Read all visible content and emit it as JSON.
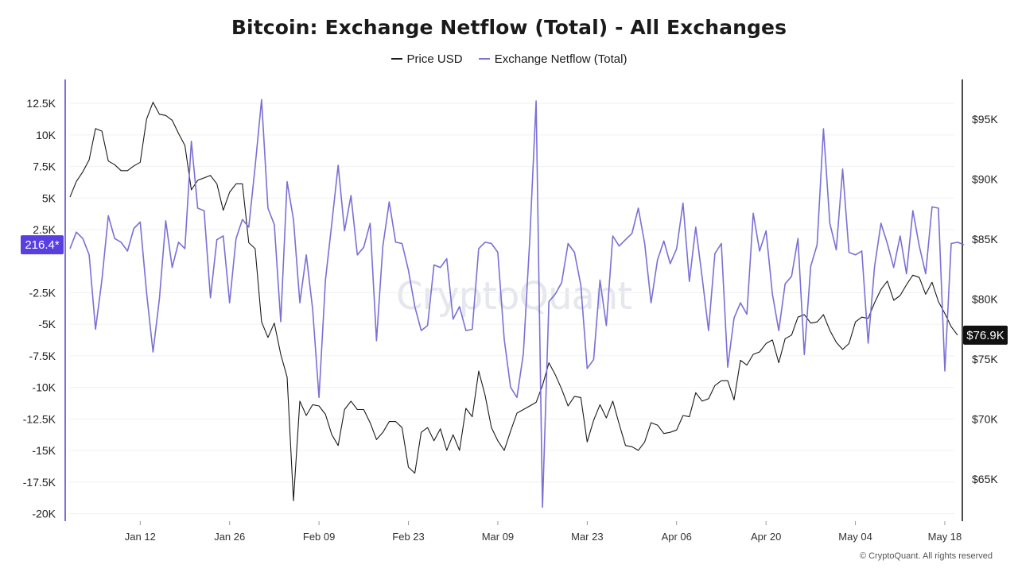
{
  "chart_data": {
    "type": "line",
    "title": "Bitcoin: Exchange Netflow (Total) - All Exchanges",
    "legend_position": "top-center",
    "grid": true,
    "watermark": "CryptoQuant",
    "copyright": "© CryptoQuant. All rights reserved",
    "colors": {
      "price": "#1a1a1a",
      "netflow": "#7b6fd6",
      "left_badge": "#5a3fe0",
      "right_badge": "#111111"
    },
    "x_ticks": [
      "Jan 12",
      "Jan 26",
      "Feb 09",
      "Feb 23",
      "Mar 09",
      "Mar 23",
      "Apr 06",
      "Apr 20",
      "May 04",
      "May 18"
    ],
    "x_range": [
      "2025-01-01",
      "2025-05-19"
    ],
    "left_axis": {
      "ticks": [
        "12.5K",
        "10K",
        "7.5K",
        "5K",
        "2.5K",
        "-2.5K",
        "-5K",
        "-7.5K",
        "-10K",
        "-12.5K",
        "-15K",
        "-17.5K",
        "-20K"
      ],
      "tick_values": [
        12500,
        10000,
        7500,
        5000,
        2500,
        -2500,
        -5000,
        -7500,
        -10000,
        -12500,
        -15000,
        -17500,
        -20000
      ],
      "ylim": [
        -20600,
        14400
      ],
      "current_value_label": "216.4*"
    },
    "right_axis": {
      "ticks": [
        "$95K",
        "$90K",
        "$85K",
        "$80K",
        "$75K",
        "$70K",
        "$65K"
      ],
      "tick_values": [
        95000,
        90000,
        85000,
        80000,
        75000,
        70000,
        65000
      ],
      "ylim": [
        61500,
        98300
      ],
      "current_value_label": "$76.9K"
    },
    "series": [
      {
        "name": "Price USD",
        "axis": "right",
        "values": [
          [
            0,
            88500
          ],
          [
            1,
            89800
          ],
          [
            2,
            90600
          ],
          [
            3,
            91600
          ],
          [
            4,
            94200
          ],
          [
            5,
            94000
          ],
          [
            6,
            91500
          ],
          [
            7,
            91200
          ],
          [
            8,
            90700
          ],
          [
            9,
            90700
          ],
          [
            10,
            91100
          ],
          [
            11,
            91400
          ],
          [
            12,
            95000
          ],
          [
            13,
            96400
          ],
          [
            14,
            95400
          ],
          [
            15,
            95300
          ],
          [
            16,
            94900
          ],
          [
            17,
            93800
          ],
          [
            18,
            92800
          ],
          [
            19,
            89100
          ],
          [
            20,
            89900
          ],
          [
            21,
            90100
          ],
          [
            22,
            90300
          ],
          [
            23,
            89600
          ],
          [
            24,
            87400
          ],
          [
            25,
            88900
          ],
          [
            26,
            89600
          ],
          [
            27,
            89600
          ],
          [
            28,
            84700
          ],
          [
            29,
            84200
          ],
          [
            30,
            78100
          ],
          [
            31,
            76800
          ],
          [
            32,
            78000
          ],
          [
            33,
            75400
          ],
          [
            34,
            73500
          ],
          [
            35,
            63200
          ],
          [
            36,
            71500
          ],
          [
            37,
            70300
          ],
          [
            38,
            71200
          ],
          [
            39,
            71100
          ],
          [
            40,
            70400
          ],
          [
            41,
            68700
          ],
          [
            42,
            67800
          ],
          [
            43,
            70800
          ],
          [
            44,
            71500
          ],
          [
            45,
            70800
          ],
          [
            46,
            70800
          ],
          [
            47,
            69700
          ],
          [
            48,
            68300
          ],
          [
            49,
            68900
          ],
          [
            50,
            69800
          ],
          [
            51,
            69800
          ],
          [
            52,
            69300
          ],
          [
            53,
            66000
          ],
          [
            54,
            65500
          ],
          [
            55,
            68900
          ],
          [
            56,
            69300
          ],
          [
            57,
            68200
          ],
          [
            58,
            69200
          ],
          [
            59,
            67400
          ],
          [
            60,
            68700
          ],
          [
            61,
            67400
          ],
          [
            62,
            70900
          ],
          [
            63,
            70200
          ],
          [
            64,
            74000
          ],
          [
            65,
            72000
          ],
          [
            66,
            69300
          ],
          [
            67,
            68200
          ],
          [
            68,
            67400
          ],
          [
            69,
            69000
          ],
          [
            70,
            70500
          ],
          [
            71,
            70800
          ],
          [
            72,
            71100
          ],
          [
            73,
            71400
          ],
          [
            74,
            72800
          ],
          [
            75,
            74700
          ],
          [
            76,
            73700
          ],
          [
            77,
            72500
          ],
          [
            78,
            71100
          ],
          [
            79,
            71900
          ],
          [
            80,
            71800
          ],
          [
            81,
            68100
          ],
          [
            82,
            69900
          ],
          [
            83,
            71200
          ],
          [
            84,
            70100
          ],
          [
            85,
            71500
          ],
          [
            86,
            69600
          ],
          [
            87,
            67800
          ],
          [
            88,
            67700
          ],
          [
            89,
            67400
          ],
          [
            90,
            68100
          ],
          [
            91,
            69700
          ],
          [
            92,
            69500
          ],
          [
            93,
            68800
          ],
          [
            94,
            68900
          ],
          [
            95,
            69100
          ],
          [
            96,
            70300
          ],
          [
            97,
            70200
          ],
          [
            98,
            72200
          ],
          [
            99,
            71500
          ],
          [
            100,
            71700
          ],
          [
            101,
            72800
          ],
          [
            102,
            73200
          ],
          [
            103,
            73200
          ],
          [
            104,
            71600
          ],
          [
            105,
            74900
          ],
          [
            106,
            74500
          ],
          [
            107,
            75400
          ],
          [
            108,
            75600
          ],
          [
            109,
            76300
          ],
          [
            110,
            76600
          ],
          [
            111,
            74700
          ],
          [
            112,
            76700
          ],
          [
            113,
            77000
          ],
          [
            114,
            78500
          ],
          [
            115,
            78700
          ],
          [
            116,
            78000
          ],
          [
            117,
            78100
          ],
          [
            118,
            78700
          ],
          [
            119,
            77400
          ],
          [
            120,
            76400
          ],
          [
            121,
            75800
          ],
          [
            122,
            76300
          ],
          [
            123,
            78100
          ],
          [
            124,
            78500
          ],
          [
            125,
            78400
          ],
          [
            126,
            79700
          ],
          [
            127,
            80800
          ],
          [
            128,
            81500
          ],
          [
            129,
            79900
          ],
          [
            130,
            80300
          ],
          [
            131,
            81200
          ],
          [
            132,
            82000
          ],
          [
            133,
            81800
          ],
          [
            134,
            80400
          ],
          [
            135,
            81400
          ],
          [
            136,
            79800
          ],
          [
            137,
            78800
          ],
          [
            138,
            77700
          ],
          [
            139,
            77000
          ]
        ]
      },
      {
        "name": "Exchange Netflow (Total)",
        "axis": "left",
        "values": [
          [
            0,
            1000
          ],
          [
            1,
            2300
          ],
          [
            2,
            1800
          ],
          [
            3,
            500
          ],
          [
            4,
            -5400
          ],
          [
            5,
            -1500
          ],
          [
            6,
            3600
          ],
          [
            7,
            1800
          ],
          [
            8,
            1500
          ],
          [
            9,
            800
          ],
          [
            10,
            2600
          ],
          [
            11,
            3100
          ],
          [
            12,
            -2500
          ],
          [
            13,
            -7200
          ],
          [
            14,
            -3000
          ],
          [
            15,
            3200
          ],
          [
            16,
            -500
          ],
          [
            17,
            1500
          ],
          [
            18,
            1000
          ],
          [
            19,
            9500
          ],
          [
            20,
            4200
          ],
          [
            21,
            4000
          ],
          [
            22,
            -2900
          ],
          [
            23,
            1700
          ],
          [
            24,
            2000
          ],
          [
            25,
            -3300
          ],
          [
            26,
            1800
          ],
          [
            27,
            3300
          ],
          [
            28,
            2700
          ],
          [
            29,
            7500
          ],
          [
            30,
            12800
          ],
          [
            31,
            4200
          ],
          [
            32,
            2900
          ],
          [
            33,
            -4800
          ],
          [
            34,
            6300
          ],
          [
            35,
            3300
          ],
          [
            36,
            -3300
          ],
          [
            37,
            500
          ],
          [
            38,
            -3800
          ],
          [
            39,
            -10800
          ],
          [
            40,
            -1500
          ],
          [
            41,
            3000
          ],
          [
            42,
            7600
          ],
          [
            43,
            2400
          ],
          [
            44,
            5200
          ],
          [
            45,
            500
          ],
          [
            46,
            1100
          ],
          [
            47,
            3000
          ],
          [
            48,
            -6300
          ],
          [
            49,
            1200
          ],
          [
            50,
            4700
          ],
          [
            51,
            1500
          ],
          [
            52,
            1400
          ],
          [
            53,
            -700
          ],
          [
            54,
            -3600
          ],
          [
            55,
            -5500
          ],
          [
            56,
            -5100
          ],
          [
            57,
            -300
          ],
          [
            58,
            -500
          ],
          [
            59,
            200
          ],
          [
            60,
            -4600
          ],
          [
            61,
            -3600
          ],
          [
            62,
            -5500
          ],
          [
            63,
            -5400
          ],
          [
            64,
            1000
          ],
          [
            65,
            1500
          ],
          [
            66,
            1400
          ],
          [
            67,
            700
          ],
          [
            68,
            -6200
          ],
          [
            69,
            -10000
          ],
          [
            70,
            -10800
          ],
          [
            71,
            -7300
          ],
          [
            72,
            1700
          ],
          [
            73,
            12700
          ],
          [
            74,
            -19500
          ],
          [
            75,
            -3200
          ],
          [
            76,
            -2600
          ],
          [
            77,
            -1700
          ],
          [
            78,
            1400
          ],
          [
            79,
            700
          ],
          [
            80,
            -1900
          ],
          [
            81,
            -8500
          ],
          [
            82,
            -7800
          ],
          [
            83,
            -1500
          ],
          [
            84,
            -5100
          ],
          [
            85,
            2000
          ],
          [
            86,
            1200
          ],
          [
            87,
            1700
          ],
          [
            88,
            2200
          ],
          [
            89,
            4200
          ],
          [
            90,
            1400
          ],
          [
            91,
            -3300
          ],
          [
            92,
            100
          ],
          [
            93,
            1600
          ],
          [
            94,
            -200
          ],
          [
            95,
            1000
          ],
          [
            96,
            4600
          ],
          [
            97,
            -1600
          ],
          [
            98,
            2700
          ],
          [
            99,
            -1300
          ],
          [
            100,
            -5500
          ],
          [
            101,
            600
          ],
          [
            102,
            1400
          ],
          [
            103,
            -8400
          ],
          [
            104,
            -4500
          ],
          [
            105,
            -3300
          ],
          [
            106,
            -4200
          ],
          [
            107,
            3800
          ],
          [
            108,
            800
          ],
          [
            109,
            2400
          ],
          [
            110,
            -2600
          ],
          [
            111,
            -5500
          ],
          [
            112,
            -1800
          ],
          [
            113,
            -1200
          ],
          [
            114,
            1800
          ],
          [
            115,
            -7400
          ],
          [
            116,
            -400
          ],
          [
            117,
            1300
          ],
          [
            118,
            10500
          ],
          [
            119,
            3000
          ],
          [
            120,
            900
          ],
          [
            121,
            7300
          ],
          [
            122,
            700
          ],
          [
            123,
            500
          ],
          [
            124,
            800
          ],
          [
            125,
            -6500
          ],
          [
            126,
            -400
          ],
          [
            127,
            3000
          ],
          [
            128,
            1400
          ],
          [
            129,
            -500
          ],
          [
            130,
            2000
          ],
          [
            131,
            -1000
          ],
          [
            132,
            4000
          ],
          [
            133,
            1200
          ],
          [
            134,
            -1000
          ],
          [
            135,
            4300
          ],
          [
            136,
            4200
          ],
          [
            137,
            -8700
          ],
          [
            138,
            1400
          ],
          [
            139,
            1500
          ],
          [
            140,
            1300
          ]
        ]
      }
    ]
  }
}
